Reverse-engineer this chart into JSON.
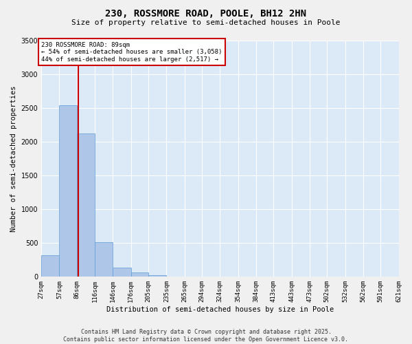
{
  "title_line1": "230, ROSSMORE ROAD, POOLE, BH12 2HN",
  "title_line2": "Size of property relative to semi-detached houses in Poole",
  "xlabel": "Distribution of semi-detached houses by size in Poole",
  "ylabel": "Number of semi-detached properties",
  "bar_values": [
    320,
    2540,
    2120,
    510,
    140,
    60,
    20,
    5,
    2,
    1,
    0,
    0,
    0,
    0,
    0,
    0,
    0,
    0,
    0,
    0
  ],
  "bin_labels": [
    "27sqm",
    "57sqm",
    "86sqm",
    "116sqm",
    "146sqm",
    "176sqm",
    "205sqm",
    "235sqm",
    "265sqm",
    "294sqm",
    "324sqm",
    "354sqm",
    "384sqm",
    "413sqm",
    "443sqm",
    "473sqm",
    "502sqm",
    "532sqm",
    "562sqm",
    "591sqm",
    "621sqm"
  ],
  "bar_color": "#aec6e8",
  "bar_edgecolor": "#5b9bd5",
  "vline_x": 89,
  "vline_color": "#cc0000",
  "annotation_title": "230 ROSSMORE ROAD: 89sqm",
  "annotation_line2": "← 54% of semi-detached houses are smaller (3,058)",
  "annotation_line3": "44% of semi-detached houses are larger (2,517) →",
  "annotation_box_color": "#cc0000",
  "ylim": [
    0,
    3500
  ],
  "yticks": [
    0,
    500,
    1000,
    1500,
    2000,
    2500,
    3000,
    3500
  ],
  "bin_edges": [
    27,
    57,
    86,
    116,
    146,
    176,
    205,
    235,
    265,
    294,
    324,
    354,
    384,
    413,
    443,
    473,
    502,
    532,
    562,
    591,
    621
  ],
  "footer_line1": "Contains HM Land Registry data © Crown copyright and database right 2025.",
  "footer_line2": "Contains public sector information licensed under the Open Government Licence v3.0.",
  "fig_bg_color": "#f0f0f0",
  "plot_bg_color": "#dce9f7"
}
